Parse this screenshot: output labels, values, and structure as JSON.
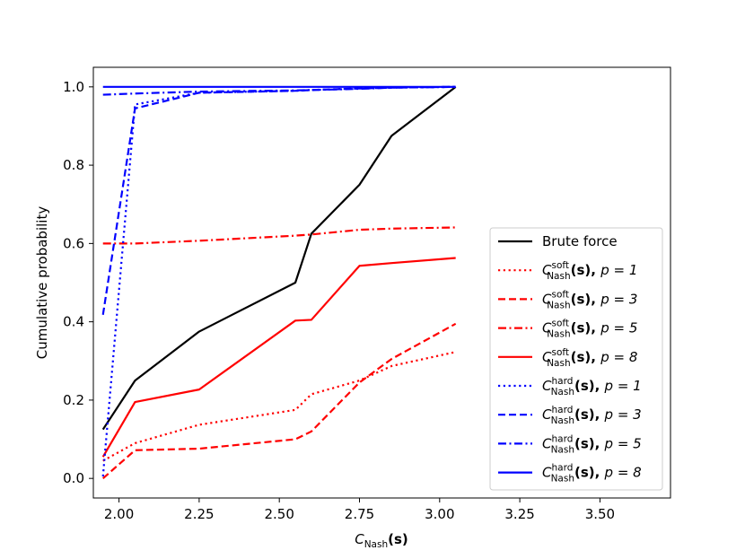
{
  "chart_data": {
    "type": "line",
    "xlabel": "C_Nash(s)",
    "ylabel": "Cumulative probability",
    "xlim": [
      1.92,
      3.72
    ],
    "ylim": [
      -0.05,
      1.05
    ],
    "xticks": [
      "2.00",
      "2.25",
      "2.50",
      "2.75",
      "3.00",
      "3.25",
      "3.50"
    ],
    "yticks": [
      "0.0",
      "0.2",
      "0.4",
      "0.6",
      "0.8",
      "1.0"
    ],
    "legend_position": "lower-right",
    "series": [
      {
        "name": "Brute force",
        "color": "#000000",
        "dash": "solid",
        "x": [
          1.95,
          2.05,
          2.25,
          2.55,
          2.6,
          2.75,
          2.85,
          3.05
        ],
        "y": [
          0.125,
          0.25,
          0.375,
          0.5,
          0.625,
          0.75,
          0.875,
          1.0
        ]
      },
      {
        "name": "C^soft_Nash(s), p = 1",
        "color": "#ff0000",
        "dash": "dotted",
        "x": [
          1.95,
          2.05,
          2.25,
          2.55,
          2.6,
          2.75,
          2.85,
          3.05
        ],
        "y": [
          0.045,
          0.09,
          0.137,
          0.175,
          0.215,
          0.25,
          0.287,
          0.323
        ]
      },
      {
        "name": "C^soft_Nash(s), p = 3",
        "color": "#ff0000",
        "dash": "dashed",
        "x": [
          1.95,
          2.05,
          2.25,
          2.55,
          2.6,
          2.75,
          2.85,
          3.05
        ],
        "y": [
          0.0,
          0.072,
          0.076,
          0.1,
          0.12,
          0.245,
          0.305,
          0.395
        ]
      },
      {
        "name": "C^soft_Nash(s), p = 5",
        "color": "#ff0000",
        "dash": "dashdot",
        "x": [
          1.95,
          2.05,
          2.25,
          2.55,
          2.6,
          2.75,
          2.85,
          3.05
        ],
        "y": [
          0.6,
          0.6,
          0.607,
          0.62,
          0.623,
          0.635,
          0.638,
          0.641
        ]
      },
      {
        "name": "C^soft_Nash(s), p = 8",
        "color": "#ff0000",
        "dash": "solid",
        "x": [
          1.95,
          2.05,
          2.25,
          2.55,
          2.6,
          2.75,
          2.85,
          3.05
        ],
        "y": [
          0.055,
          0.195,
          0.227,
          0.403,
          0.405,
          0.543,
          0.55,
          0.563
        ]
      },
      {
        "name": "C^hard_Nash(s), p = 1",
        "color": "#0000ff",
        "dash": "dotted",
        "x": [
          1.95,
          2.05,
          2.25,
          2.55,
          2.6,
          2.75,
          2.85,
          3.05
        ],
        "y": [
          0.005,
          0.955,
          0.985,
          0.99,
          0.992,
          0.996,
          0.998,
          1.0
        ]
      },
      {
        "name": "C^hard_Nash(s), p = 3",
        "color": "#0000ff",
        "dash": "dashed",
        "x": [
          1.95,
          2.05,
          2.25,
          2.55,
          2.6,
          2.75,
          2.85,
          3.05
        ],
        "y": [
          0.418,
          0.945,
          0.985,
          0.99,
          0.992,
          0.996,
          0.998,
          1.0
        ]
      },
      {
        "name": "C^hard_Nash(s), p = 5",
        "color": "#0000ff",
        "dash": "dashdot",
        "x": [
          1.95,
          2.05,
          2.25,
          2.55,
          2.6,
          2.75,
          2.85,
          3.05
        ],
        "y": [
          0.98,
          0.983,
          0.988,
          0.991,
          0.992,
          0.995,
          0.998,
          1.0
        ]
      },
      {
        "name": "C^hard_Nash(s), p = 8",
        "color": "#0000ff",
        "dash": "solid",
        "x": [
          1.95,
          2.05,
          2.25,
          2.55,
          2.6,
          2.75,
          2.85,
          3.05
        ],
        "y": [
          1.0,
          1.0,
          1.0,
          1.0,
          1.0,
          1.0,
          1.0,
          1.0
        ]
      }
    ],
    "legend": [
      {
        "kind": "plain",
        "text": "Brute force"
      },
      {
        "kind": "math",
        "C": "C",
        "sup": "soft",
        "sub": "Nash",
        "arg": "(s), ",
        "p": "p = 1"
      },
      {
        "kind": "math",
        "C": "C",
        "sup": "soft",
        "sub": "Nash",
        "arg": "(s), ",
        "p": "p = 3"
      },
      {
        "kind": "math",
        "C": "C",
        "sup": "soft",
        "sub": "Nash",
        "arg": "(s), ",
        "p": "p = 5"
      },
      {
        "kind": "math",
        "C": "C",
        "sup": "soft",
        "sub": "Nash",
        "arg": "(s), ",
        "p": "p = 8"
      },
      {
        "kind": "math",
        "C": "C",
        "sup": "hard",
        "sub": "Nash",
        "arg": "(s), ",
        "p": "p = 1"
      },
      {
        "kind": "math",
        "C": "C",
        "sup": "hard",
        "sub": "Nash",
        "arg": "(s), ",
        "p": "p = 3"
      },
      {
        "kind": "math",
        "C": "C",
        "sup": "hard",
        "sub": "Nash",
        "arg": "(s), ",
        "p": "p = 5"
      },
      {
        "kind": "math",
        "C": "C",
        "sup": "hard",
        "sub": "Nash",
        "arg": "(s), ",
        "p": "p = 8"
      }
    ],
    "xlabel_parts": {
      "C": "C",
      "sub": "Nash",
      "arg": "(s)"
    }
  }
}
